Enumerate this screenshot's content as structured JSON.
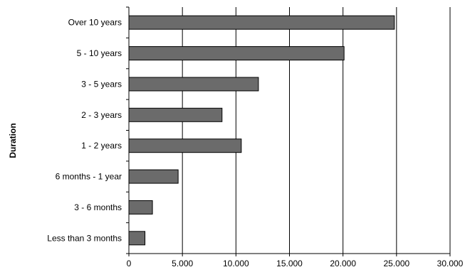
{
  "chart_data": {
    "type": "bar",
    "orientation": "horizontal",
    "categories": [
      "Over 10 years",
      "5 - 10 years",
      "3 - 5 years",
      "2 - 3 years",
      "1 - 2 years",
      "6 months - 1 year",
      "3 - 6 months",
      "Less than 3 months"
    ],
    "values": [
      24800,
      20100,
      12100,
      8700,
      10500,
      4600,
      2200,
      1500
    ],
    "ylabel": "Duration",
    "xlabel": "",
    "xlim": [
      0,
      30000
    ],
    "xticks": [
      "0",
      "5.000",
      "10.000",
      "15.000",
      "20.000",
      "25.000",
      "30.000"
    ],
    "grid": "vertical",
    "bar_color": "#6b6b6b",
    "bar_edge_color": "#000000"
  }
}
